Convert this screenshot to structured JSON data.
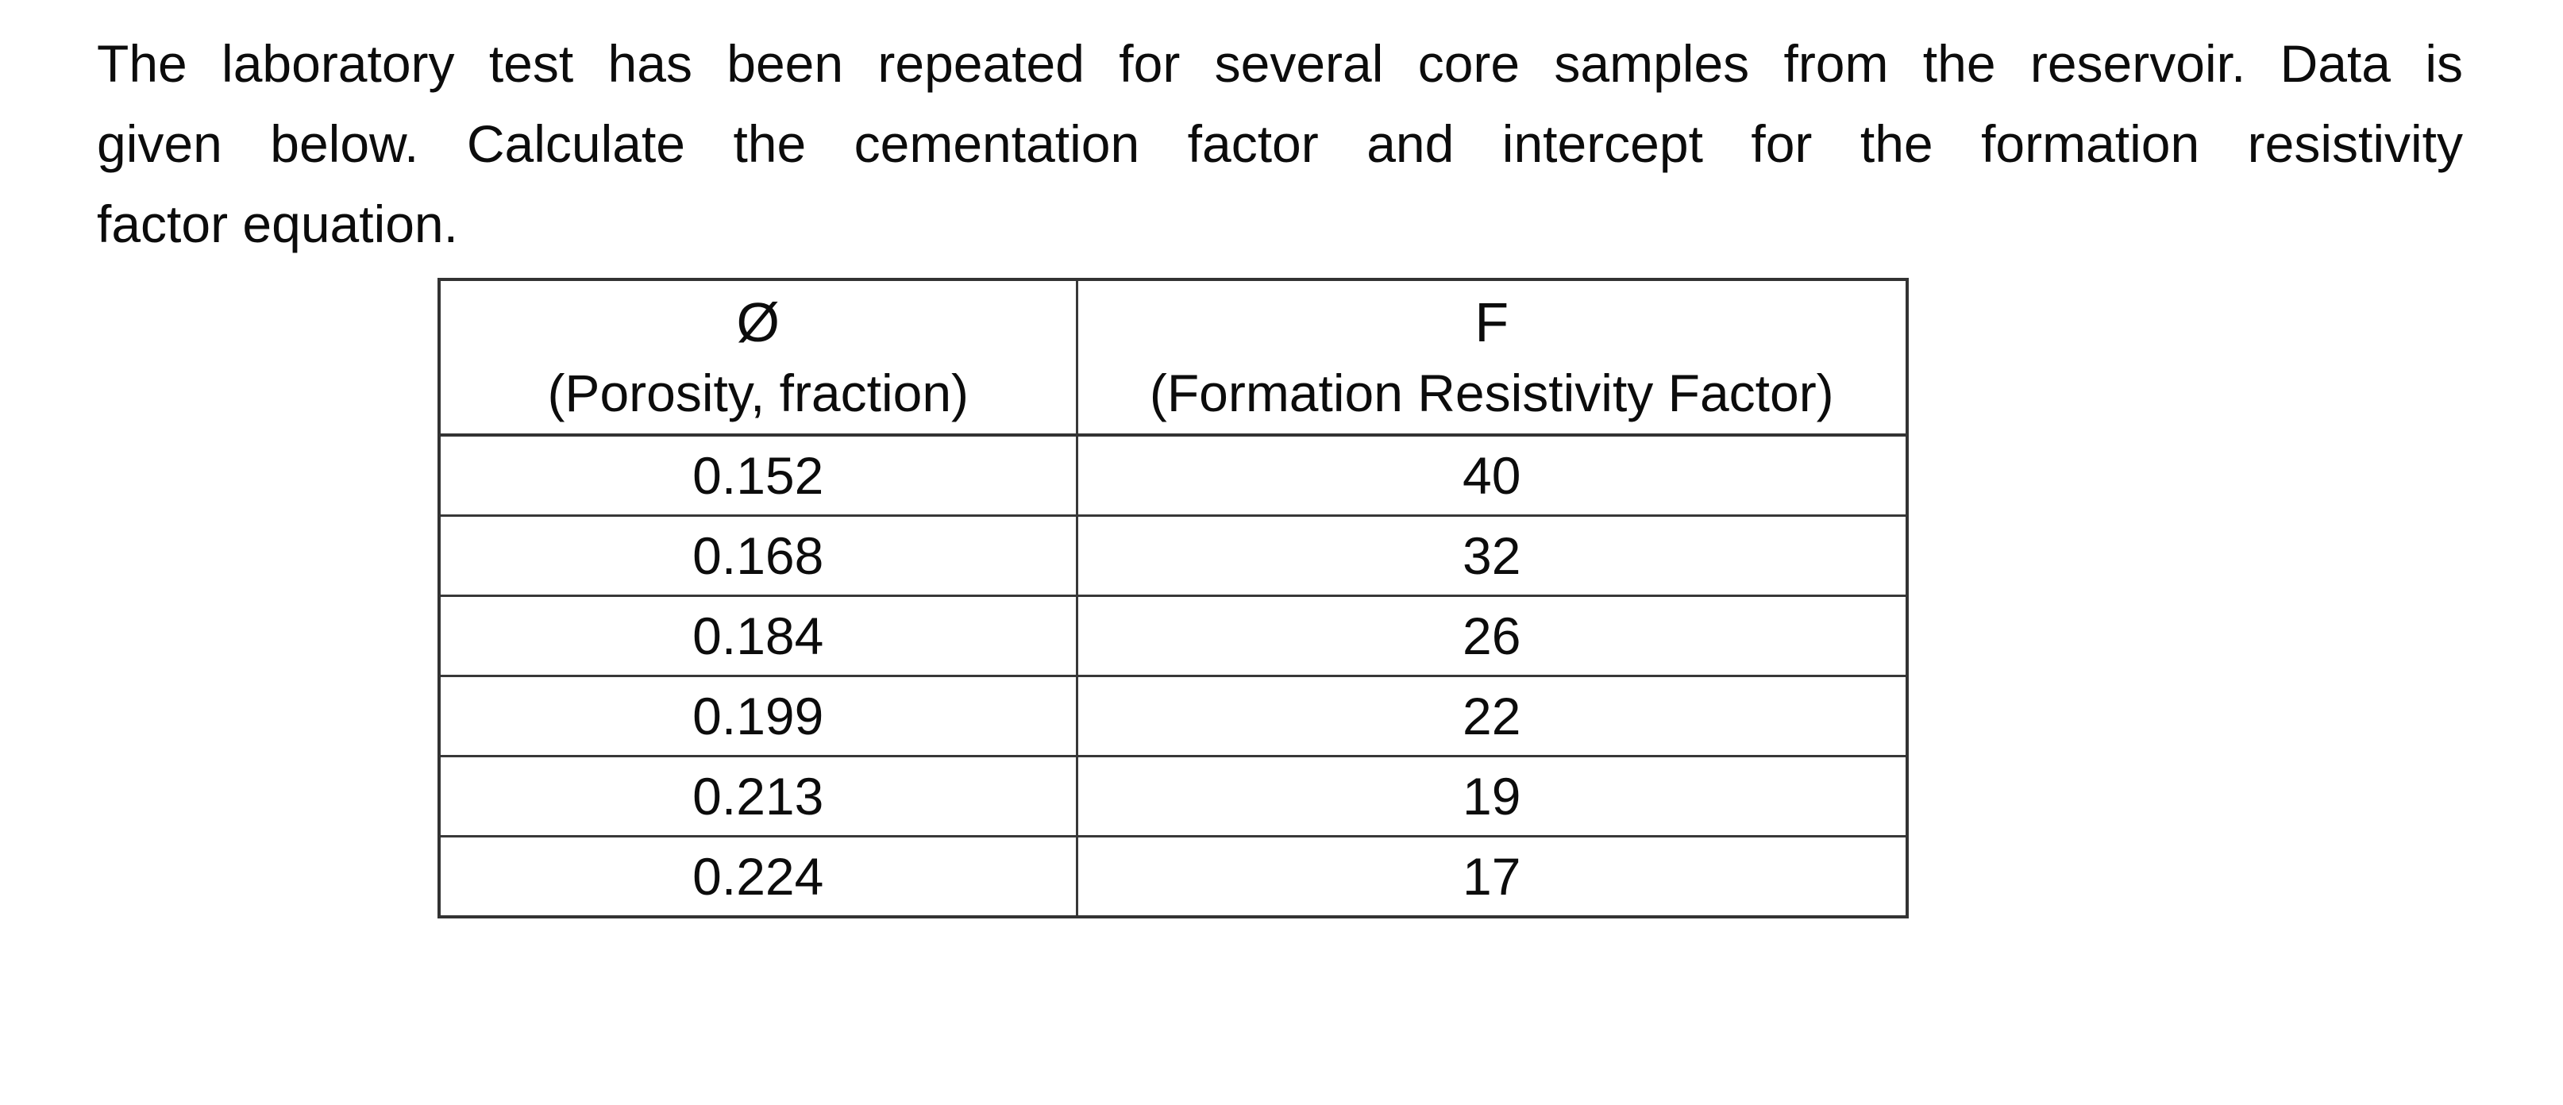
{
  "question": {
    "lines": [
      "The laboratory test has been repeated for several core samples from the reservoir. Data is",
      "given below. Calculate the cementation factor and intercept for the formation resistivity",
      "factor equation."
    ]
  },
  "table": {
    "headers": [
      {
        "symbol": "Ø",
        "label": "(Porosity, fraction)"
      },
      {
        "symbol": "F",
        "label": "(Formation Resistivity Factor)"
      }
    ],
    "rows": [
      {
        "porosity": "0.152",
        "factor": "40"
      },
      {
        "porosity": "0.168",
        "factor": "32"
      },
      {
        "porosity": "0.184",
        "factor": "26"
      },
      {
        "porosity": "0.199",
        "factor": "22"
      },
      {
        "porosity": "0.213",
        "factor": "19"
      },
      {
        "porosity": "0.224",
        "factor": "17"
      }
    ]
  },
  "colors": {
    "background": "#ffffff",
    "text": "#0c0c0c",
    "table_border": "#383838"
  }
}
